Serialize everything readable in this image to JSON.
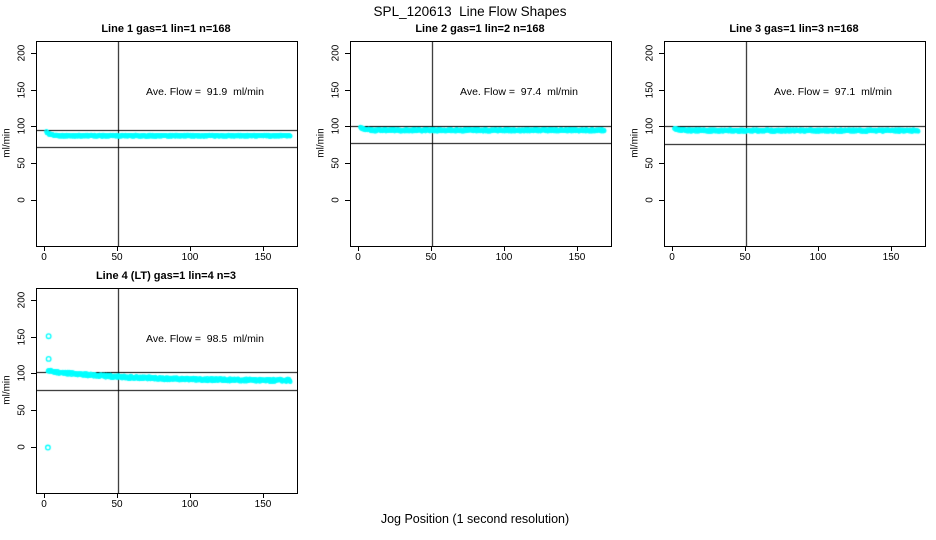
{
  "page_title": "SPL_120613  Line Flow Shapes",
  "x_axis_label": "Jog Position (1 second resolution)",
  "colors": {
    "point": "#00FFFF",
    "axis": "#000000",
    "background": "#FFFFFF"
  },
  "chart_data": [
    {
      "type": "scatter",
      "title": "Line 1 gas=1 lin=1 n=168",
      "annotation": "Ave. Flow =  91.9  ml/min",
      "ave_flow_ml_min": 91.9,
      "ylabel": "ml/min",
      "x_ticks": [
        0,
        50,
        100,
        150
      ],
      "y_ticks": [
        0,
        50,
        100,
        150,
        200
      ],
      "vline_x": 50,
      "ref_lines": [
        96.5,
        73.5
      ],
      "band": {
        "x_start": 1,
        "x_end": 168,
        "y_start": 93.5,
        "y_end": 88.4,
        "tau": 2.5,
        "noise": 0.9,
        "step": 0.33
      },
      "outliers": []
    },
    {
      "type": "scatter",
      "title": "Line 2 gas=1 lin=2 n=168",
      "annotation": "Ave. Flow =  97.4  ml/min",
      "ave_flow_ml_min": 97.4,
      "ylabel": "ml/min",
      "x_ticks": [
        0,
        50,
        100,
        150
      ],
      "y_ticks": [
        0,
        50,
        100,
        150,
        200
      ],
      "vline_x": 50,
      "ref_lines": [
        102.3,
        77.9
      ],
      "band": {
        "x_start": 1,
        "x_end": 168,
        "y_start": 99.5,
        "y_end": 95.9,
        "tau": 3,
        "noise": 1.3,
        "step": 0.33
      },
      "outliers": []
    },
    {
      "type": "scatter",
      "title": "Line 3 gas=1 lin=3 n=168",
      "annotation": "Ave. Flow =  97.1  ml/min",
      "ave_flow_ml_min": 97.1,
      "ylabel": "ml/min",
      "x_ticks": [
        0,
        50,
        100,
        150
      ],
      "y_ticks": [
        0,
        50,
        100,
        150,
        200
      ],
      "vline_x": 50,
      "ref_lines": [
        102.0,
        77.7
      ],
      "band": {
        "x_start": 1,
        "x_end": 168,
        "y_start": 99.0,
        "y_end": 95.5,
        "tau": 3,
        "noise": 1.3,
        "step": 0.33
      },
      "outliers": []
    },
    {
      "type": "scatter",
      "title": "Line 4 (LT) gas=1 lin=4 n=3",
      "annotation": "Ave. Flow =  98.5  ml/min",
      "ave_flow_ml_min": 98.5,
      "ylabel": "ml/min",
      "x_ticks": [
        0,
        50,
        100,
        150
      ],
      "y_ticks": [
        0,
        50,
        100,
        150,
        200
      ],
      "vline_x": 50,
      "ref_lines": [
        103.4,
        78.8
      ],
      "band": {
        "x_start": 2,
        "x_end": 168,
        "y_start": 104.5,
        "y_end": 91.0,
        "tau": 55,
        "noise": 1.8,
        "step": 0.33
      },
      "outliers": [
        [
          2.5,
          152
        ],
        [
          2.5,
          121
        ],
        [
          2,
          0
        ]
      ]
    }
  ]
}
